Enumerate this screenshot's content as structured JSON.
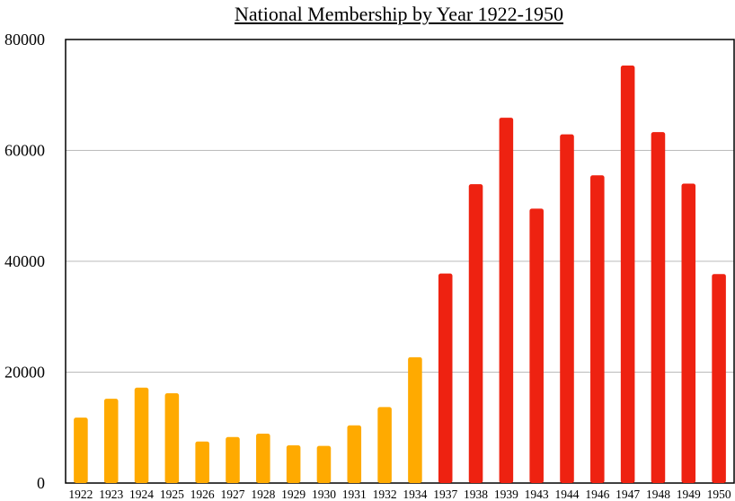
{
  "chart_data": {
    "type": "bar",
    "title": "National Membership by Year 1922-1950",
    "xlabel": "",
    "ylabel": "",
    "ylim": [
      0,
      80000
    ],
    "yticks": [
      0,
      20000,
      40000,
      60000,
      80000
    ],
    "grid": true,
    "legend": "none",
    "colors": {
      "early": "#FFAA00",
      "late": "#EE2211",
      "grid": "#bbbbbb",
      "axis": "#000000"
    },
    "categories": [
      "1922",
      "1923",
      "1924",
      "1925",
      "1926",
      "1927",
      "1928",
      "1929",
      "1930",
      "1931",
      "1932",
      "1934",
      "1937",
      "1938",
      "1939",
      "1943",
      "1944",
      "1946",
      "1947",
      "1948",
      "1949",
      "1950"
    ],
    "values": [
      11800,
      15200,
      17200,
      16200,
      7500,
      8300,
      8900,
      6800,
      6700,
      10400,
      13700,
      22700,
      37800,
      53900,
      65900,
      49500,
      62900,
      55500,
      75300,
      63300,
      54000,
      37700
    ],
    "bar_groups": [
      "early",
      "early",
      "early",
      "early",
      "early",
      "early",
      "early",
      "early",
      "early",
      "early",
      "early",
      "early",
      "late",
      "late",
      "late",
      "late",
      "late",
      "late",
      "late",
      "late",
      "late",
      "late"
    ]
  }
}
